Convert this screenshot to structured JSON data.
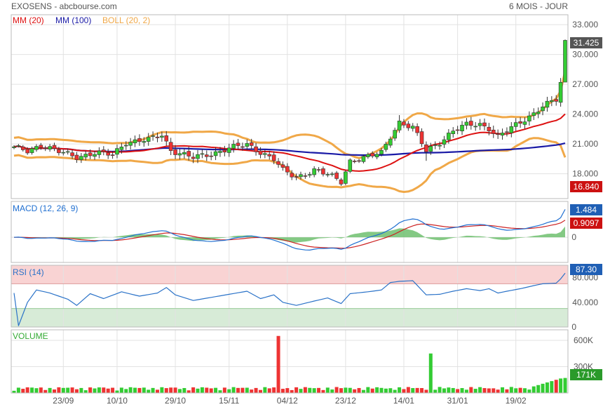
{
  "header": {
    "title": "EXOSENS - abcbourse.com",
    "period": "6 MOIS - JOUR"
  },
  "legend": {
    "ma20": "MM (20)",
    "ma100": "MM (100)",
    "boll": "BOLL (20, 2)",
    "macd": "MACD (12, 26, 9)",
    "rsi": "RSI (14)",
    "volume": "VOLUME"
  },
  "colors": {
    "up": "#33cc33",
    "down": "#ee3333",
    "ma20": "#dd1111",
    "ma100": "#1a1aa6",
    "boll": "#f0a848",
    "macd": "#1f6fd1",
    "signal": "#cc2222",
    "hist": "#6fbf6f",
    "rsi": "#2a72c8",
    "overbought_fill": "#f9d3d3",
    "oversold_fill": "#d7ebd7",
    "grid": "#e2e2e2",
    "frame": "#bbbbbb"
  },
  "badges": {
    "last": "31.425",
    "ma_low": "16.840",
    "macd": "1.484",
    "signal": "0.9097",
    "rsi": "87.30",
    "volume": "171K"
  },
  "chart_data": {
    "type": "candlestick",
    "x_tick_labels": [
      "23/09",
      "10/10",
      "29/10",
      "15/11",
      "04/12",
      "23/12",
      "14/01",
      "31/01",
      "19/02"
    ],
    "x_tick_index": [
      11,
      23,
      36,
      48,
      61,
      74,
      87,
      99,
      112
    ],
    "sessions": 124,
    "price_axis": {
      "ticks": [
        "33.000",
        "30.000",
        "27.000",
        "24.000",
        "21.000",
        "18.000"
      ],
      "range": [
        15.5,
        34.0
      ]
    },
    "macd_axis": {
      "ticks": [
        "0"
      ],
      "range": [
        -1.4,
        2.0
      ]
    },
    "rsi_axis": {
      "ticks": [
        "80.000",
        "40.000",
        "0"
      ],
      "range": [
        0,
        100
      ]
    },
    "volume_axis": {
      "ticks": [
        "600K",
        "300K"
      ],
      "range": [
        0,
        720000
      ]
    },
    "close_anchors": [
      [
        0,
        20.6
      ],
      [
        3,
        20.3
      ],
      [
        6,
        20.9
      ],
      [
        10,
        20.2
      ],
      [
        14,
        19.7
      ],
      [
        18,
        20.1
      ],
      [
        22,
        19.9
      ],
      [
        25,
        21.2
      ],
      [
        30,
        21.4
      ],
      [
        33,
        21.9
      ],
      [
        35,
        20.4
      ],
      [
        40,
        19.6
      ],
      [
        44,
        20.0
      ],
      [
        48,
        20.6
      ],
      [
        52,
        20.9
      ],
      [
        55,
        20.2
      ],
      [
        58,
        19.5
      ],
      [
        60,
        18.3
      ],
      [
        63,
        17.6
      ],
      [
        67,
        18.4
      ],
      [
        70,
        17.9
      ],
      [
        73,
        17.2
      ],
      [
        75,
        19.3
      ],
      [
        79,
        19.7
      ],
      [
        82,
        20.1
      ],
      [
        84,
        21.8
      ],
      [
        86,
        23.2
      ],
      [
        89,
        22.6
      ],
      [
        92,
        20.3
      ],
      [
        95,
        21.2
      ],
      [
        98,
        22.3
      ],
      [
        101,
        22.9
      ],
      [
        104,
        23.0
      ],
      [
        106,
        22.6
      ],
      [
        108,
        21.7
      ],
      [
        110,
        22.3
      ],
      [
        113,
        23.2
      ],
      [
        116,
        24.1
      ],
      [
        118,
        24.8
      ],
      [
        121,
        25.4
      ],
      [
        122,
        27.2
      ],
      [
        123,
        31.425
      ]
    ],
    "volume_spikes": [
      [
        59,
        650000
      ],
      [
        93,
        450000
      ]
    ],
    "rsi_anchors": [
      [
        0,
        55
      ],
      [
        1,
        2
      ],
      [
        3,
        40
      ],
      [
        5,
        60
      ],
      [
        8,
        55
      ],
      [
        12,
        45
      ],
      [
        14,
        35
      ],
      [
        17,
        54
      ],
      [
        20,
        46
      ],
      [
        24,
        57
      ],
      [
        28,
        50
      ],
      [
        32,
        55
      ],
      [
        34,
        64
      ],
      [
        36,
        52
      ],
      [
        40,
        43
      ],
      [
        44,
        48
      ],
      [
        48,
        53
      ],
      [
        52,
        58
      ],
      [
        55,
        46
      ],
      [
        58,
        52
      ],
      [
        60,
        40
      ],
      [
        63,
        35
      ],
      [
        67,
        42
      ],
      [
        70,
        47
      ],
      [
        73,
        38
      ],
      [
        75,
        54
      ],
      [
        79,
        57
      ],
      [
        82,
        60
      ],
      [
        84,
        72
      ],
      [
        86,
        74
      ],
      [
        89,
        75
      ],
      [
        92,
        52
      ],
      [
        95,
        53
      ],
      [
        98,
        58
      ],
      [
        101,
        62
      ],
      [
        104,
        59
      ],
      [
        106,
        62
      ],
      [
        108,
        55
      ],
      [
        110,
        58
      ],
      [
        113,
        62
      ],
      [
        116,
        67
      ],
      [
        118,
        70
      ],
      [
        121,
        71
      ],
      [
        122,
        78
      ],
      [
        123,
        87.3
      ]
    ],
    "last_values": {
      "close": 31.425,
      "macd": 1.484,
      "signal": 0.9097,
      "rsi": 87.3,
      "volume": 171000
    }
  }
}
